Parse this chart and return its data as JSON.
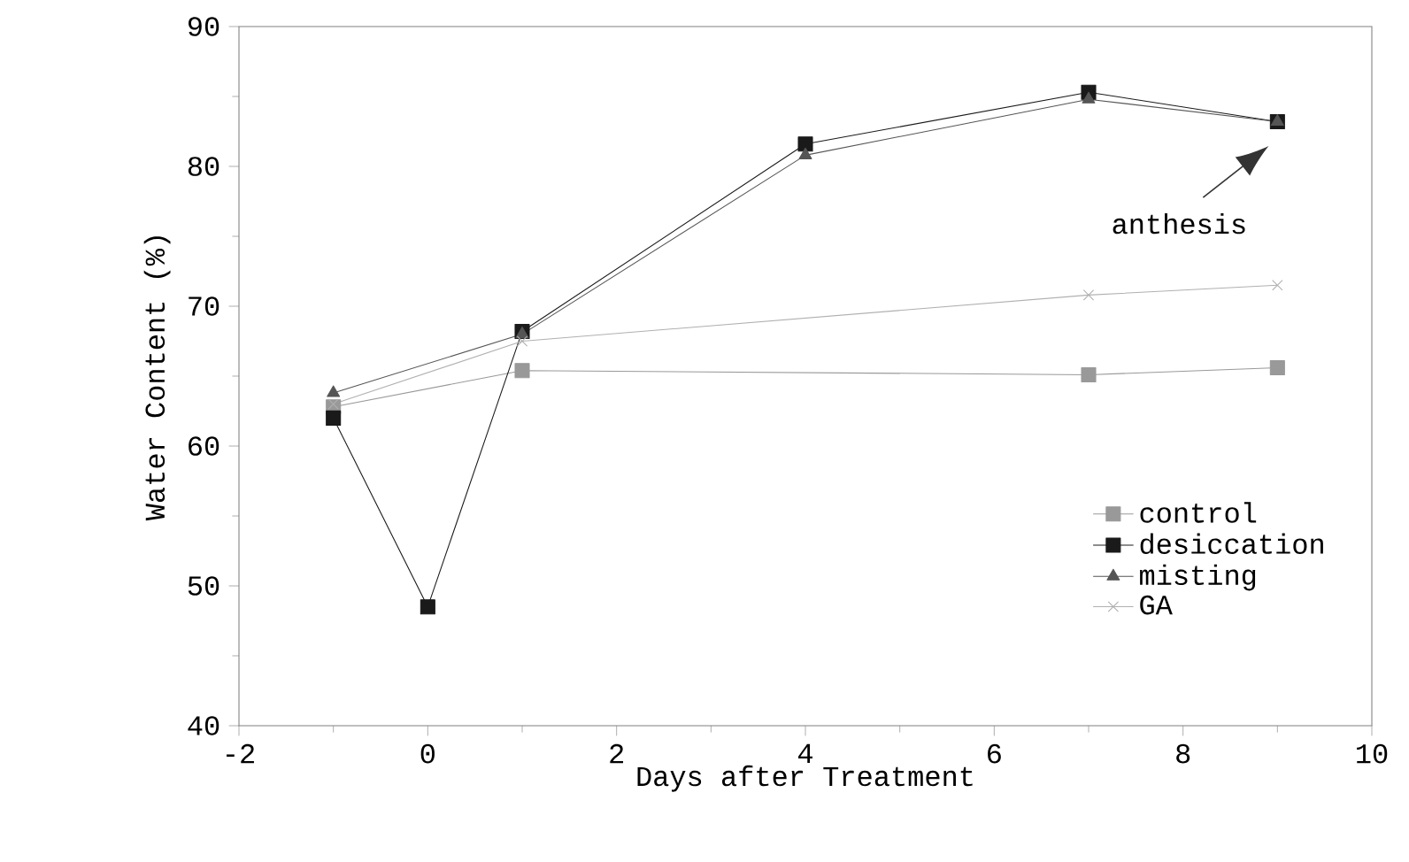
{
  "chart_data": {
    "type": "line",
    "xlabel": "Days after Treatment",
    "ylabel": "Water Content (%)",
    "xlim": [
      -2,
      10
    ],
    "xticks": [
      -2,
      0,
      2,
      4,
      6,
      8,
      10
    ],
    "ylim": [
      40,
      90
    ],
    "yticks": [
      40,
      50,
      60,
      70,
      80,
      90
    ],
    "grid": false,
    "legend": "bottom right",
    "line_style": "solid",
    "annotations": [
      "anthesis"
    ],
    "series": [
      {
        "name": "control",
        "color": "#999999",
        "marker": "square",
        "x": [
          -1,
          1,
          7,
          9
        ],
        "values": [
          62.8,
          65.4,
          65.1,
          65.6
        ]
      },
      {
        "name": "desiccation",
        "color": "#1a1a1a",
        "marker": "square",
        "x": [
          -1,
          0,
          1,
          4,
          7,
          9
        ],
        "values": [
          62,
          48.5,
          68.2,
          81.6,
          85.3,
          83.2
        ]
      },
      {
        "name": "misting",
        "color": "#555555",
        "marker": "triangle",
        "x": [
          -1,
          1,
          4,
          7,
          9
        ],
        "values": [
          63.8,
          68,
          80.8,
          84.8,
          83.2
        ]
      },
      {
        "name": "GA",
        "color": "#b0b0b0",
        "marker": "cross",
        "x": [
          -1,
          1,
          7,
          9
        ],
        "values": [
          63,
          67.5,
          70.8,
          71.5
        ]
      }
    ]
  }
}
